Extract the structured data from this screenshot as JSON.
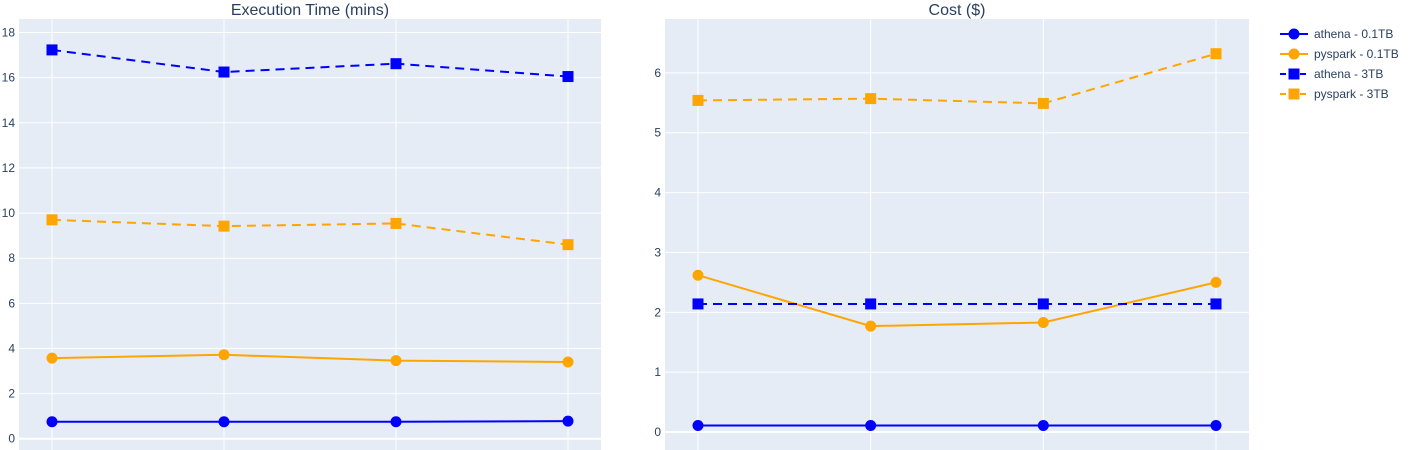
{
  "chart_data": [
    {
      "type": "line",
      "title": "Execution Time (mins)",
      "x": [
        1,
        2,
        3,
        4
      ],
      "ylim": [
        -0.5,
        18.6
      ],
      "yticks": [
        0,
        2,
        4,
        6,
        8,
        10,
        12,
        14,
        16,
        18
      ],
      "grid": true,
      "series": [
        {
          "name": "athena - 0.1TB",
          "color": "#0000ff",
          "dash": "solid",
          "marker": "circle",
          "values": [
            0.75,
            0.75,
            0.75,
            0.78
          ]
        },
        {
          "name": "pyspark - 0.1TB",
          "color": "#ffa500",
          "dash": "solid",
          "marker": "circle",
          "values": [
            3.57,
            3.72,
            3.46,
            3.4
          ]
        },
        {
          "name": "athena - 3TB",
          "color": "#0000ff",
          "dash": "dash",
          "marker": "square",
          "values": [
            17.23,
            16.25,
            16.62,
            16.05
          ]
        },
        {
          "name": "pyspark - 3TB",
          "color": "#ffa500",
          "dash": "dash",
          "marker": "square",
          "values": [
            9.7,
            9.42,
            9.54,
            8.6
          ]
        }
      ]
    },
    {
      "type": "line",
      "title": "Cost ($)",
      "x": [
        1,
        2,
        3,
        4
      ],
      "ylim": [
        -0.3,
        6.9
      ],
      "yticks": [
        0,
        1,
        2,
        3,
        4,
        5,
        6
      ],
      "grid": true,
      "series": [
        {
          "name": "athena - 0.1TB",
          "color": "#0000ff",
          "dash": "solid",
          "marker": "circle",
          "values": [
            0.11,
            0.11,
            0.11,
            0.11
          ]
        },
        {
          "name": "pyspark - 0.1TB",
          "color": "#ffa500",
          "dash": "solid",
          "marker": "circle",
          "values": [
            2.62,
            1.77,
            1.83,
            2.5
          ]
        },
        {
          "name": "athena - 3TB",
          "color": "#0000ff",
          "dash": "dash",
          "marker": "square",
          "values": [
            2.14,
            2.14,
            2.14,
            2.14
          ]
        },
        {
          "name": "pyspark - 3TB",
          "color": "#ffa500",
          "dash": "dash",
          "marker": "square",
          "values": [
            5.54,
            5.57,
            5.49,
            6.32
          ]
        }
      ]
    }
  ],
  "legend": {
    "placement": "top-right",
    "items": [
      {
        "label": "athena - 0.1TB",
        "color": "#0000ff",
        "dash": "solid",
        "marker": "circle"
      },
      {
        "label": "pyspark - 0.1TB",
        "color": "#ffa500",
        "dash": "solid",
        "marker": "circle"
      },
      {
        "label": "athena - 3TB",
        "color": "#0000ff",
        "dash": "dash",
        "marker": "square"
      },
      {
        "label": "pyspark - 3TB",
        "color": "#ffa500",
        "dash": "dash",
        "marker": "square"
      }
    ]
  },
  "colors": {
    "plot_bg": "#e5ecf6",
    "grid": "#ffffff",
    "text": "#2a3f5f"
  }
}
